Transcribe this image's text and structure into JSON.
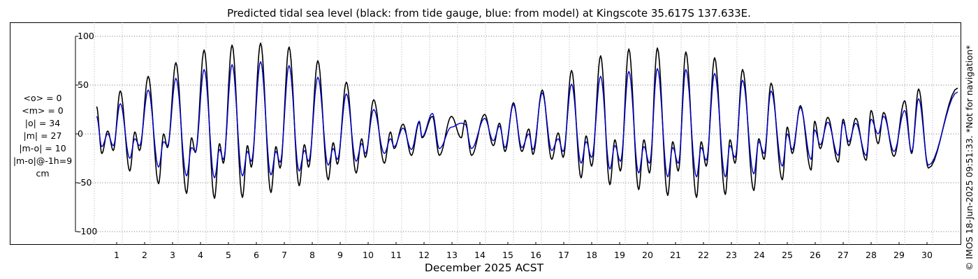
{
  "chart_data": {
    "type": "line",
    "title": "Predicted tidal sea level (black: from tide gauge, blue: from model) at Kingscote 35.617S 137.633E.",
    "xlabel": "December 2025 ACST",
    "ylabel": "cm",
    "x_range_days": [
      0,
      30.9
    ],
    "ylim": [
      -100,
      100
    ],
    "yticks": [
      100,
      50,
      0,
      -50,
      -100
    ],
    "xtick_labels": [
      "1",
      "2",
      "3",
      "4",
      "5",
      "6",
      "7",
      "8",
      "9",
      "10",
      "11",
      "12",
      "13",
      "14",
      "15",
      "16",
      "17",
      "18",
      "19",
      "20",
      "21",
      "22",
      "23",
      "24",
      "25",
      "26",
      "27",
      "28",
      "29",
      "30"
    ],
    "grid": true,
    "stats": [
      "<o> = 0",
      "<m> = 0",
      "|o| = 34",
      "|m| = 27",
      "|m-o| = 10",
      "|m-o|@-1h=9",
      "cm"
    ],
    "credit": "© IMOS 18-Jun-2025 09:51:33. *Not for navigation*",
    "colors": {
      "observed": "#000000",
      "model": "#0000cc",
      "grid": "#999999"
    },
    "series": [
      {
        "name": "tide gauge",
        "color": "#000000",
        "extremes": [
          [
            0.08,
            28
          ],
          [
            0.27,
            -20
          ],
          [
            0.48,
            3
          ],
          [
            0.68,
            -17
          ],
          [
            0.93,
            44
          ],
          [
            1.27,
            -38
          ],
          [
            1.45,
            2
          ],
          [
            1.62,
            -17
          ],
          [
            1.93,
            59
          ],
          [
            2.3,
            -51
          ],
          [
            2.48,
            0
          ],
          [
            2.62,
            -14
          ],
          [
            2.92,
            73
          ],
          [
            3.3,
            -61
          ],
          [
            3.48,
            -4
          ],
          [
            3.62,
            -19
          ],
          [
            3.93,
            86
          ],
          [
            4.3,
            -66
          ],
          [
            4.48,
            -10
          ],
          [
            4.62,
            -30
          ],
          [
            4.93,
            91
          ],
          [
            5.3,
            -65
          ],
          [
            5.48,
            -12
          ],
          [
            5.62,
            -34
          ],
          [
            5.95,
            93
          ],
          [
            6.32,
            -60
          ],
          [
            6.5,
            -13
          ],
          [
            6.65,
            -35
          ],
          [
            6.97,
            89
          ],
          [
            7.33,
            -53
          ],
          [
            7.52,
            -11
          ],
          [
            7.67,
            -34
          ],
          [
            8.0,
            75
          ],
          [
            8.37,
            -47
          ],
          [
            8.55,
            -9
          ],
          [
            8.7,
            -31
          ],
          [
            9.02,
            53
          ],
          [
            9.37,
            -40
          ],
          [
            9.57,
            -5
          ],
          [
            9.7,
            -24
          ],
          [
            10.0,
            35
          ],
          [
            10.38,
            -30
          ],
          [
            10.6,
            2
          ],
          [
            10.73,
            -15
          ],
          [
            11.05,
            10
          ],
          [
            11.35,
            -22
          ],
          [
            11.63,
            12
          ],
          [
            11.73,
            -4
          ],
          [
            12.1,
            18
          ],
          [
            12.35,
            -22
          ],
          [
            12.78,
            18
          ],
          [
            13.13,
            -4
          ],
          [
            13.27,
            14
          ],
          [
            13.5,
            -22
          ],
          [
            13.97,
            20
          ],
          [
            14.28,
            -12
          ],
          [
            14.5,
            11
          ],
          [
            14.7,
            -18
          ],
          [
            15.0,
            32
          ],
          [
            15.3,
            -18
          ],
          [
            15.55,
            5
          ],
          [
            15.7,
            -21
          ],
          [
            16.03,
            45
          ],
          [
            16.37,
            -26
          ],
          [
            16.6,
            1
          ],
          [
            16.78,
            -24
          ],
          [
            17.08,
            65
          ],
          [
            17.42,
            -45
          ],
          [
            17.6,
            -2
          ],
          [
            17.8,
            -33
          ],
          [
            18.12,
            80
          ],
          [
            18.45,
            -52
          ],
          [
            18.63,
            -6
          ],
          [
            18.83,
            -38
          ],
          [
            19.13,
            87
          ],
          [
            19.48,
            -57
          ],
          [
            19.67,
            -6
          ],
          [
            19.87,
            -40
          ],
          [
            20.15,
            88
          ],
          [
            20.52,
            -63
          ],
          [
            20.7,
            -8
          ],
          [
            20.9,
            -38
          ],
          [
            21.17,
            84
          ],
          [
            21.55,
            -65
          ],
          [
            21.72,
            -8
          ],
          [
            21.9,
            -33
          ],
          [
            22.2,
            78
          ],
          [
            22.58,
            -62
          ],
          [
            22.75,
            -6
          ],
          [
            22.93,
            -30
          ],
          [
            23.2,
            66
          ],
          [
            23.6,
            -58
          ],
          [
            23.78,
            -5
          ],
          [
            23.97,
            -26
          ],
          [
            24.22,
            52
          ],
          [
            24.62,
            -47
          ],
          [
            24.8,
            7
          ],
          [
            24.98,
            -20
          ],
          [
            25.27,
            29
          ],
          [
            25.65,
            -37
          ],
          [
            25.78,
            13
          ],
          [
            25.98,
            -15
          ],
          [
            26.25,
            17
          ],
          [
            26.62,
            -29
          ],
          [
            26.8,
            15
          ],
          [
            27.0,
            -12
          ],
          [
            27.25,
            16
          ],
          [
            27.62,
            -27
          ],
          [
            27.8,
            24
          ],
          [
            28.05,
            -10
          ],
          [
            28.25,
            22
          ],
          [
            28.62,
            -23
          ],
          [
            29.0,
            34
          ],
          [
            29.25,
            -20
          ],
          [
            29.5,
            46
          ],
          [
            29.85,
            -35
          ],
          [
            30.9,
            47
          ]
        ]
      },
      {
        "name": "model",
        "color": "#0000cc",
        "extremes": [
          [
            0.08,
            18
          ],
          [
            0.27,
            -13
          ],
          [
            0.48,
            0
          ],
          [
            0.68,
            -12
          ],
          [
            0.93,
            31
          ],
          [
            1.27,
            -25
          ],
          [
            1.45,
            -5
          ],
          [
            1.62,
            -12
          ],
          [
            1.93,
            45
          ],
          [
            2.3,
            -34
          ],
          [
            2.48,
            -8
          ],
          [
            2.62,
            -12
          ],
          [
            2.92,
            57
          ],
          [
            3.3,
            -43
          ],
          [
            3.48,
            -14
          ],
          [
            3.62,
            -18
          ],
          [
            3.93,
            66
          ],
          [
            4.3,
            -45
          ],
          [
            4.48,
            -16
          ],
          [
            4.62,
            -26
          ],
          [
            4.93,
            71
          ],
          [
            5.3,
            -43
          ],
          [
            5.48,
            -18
          ],
          [
            5.62,
            -28
          ],
          [
            5.95,
            74
          ],
          [
            6.32,
            -42
          ],
          [
            6.5,
            -18
          ],
          [
            6.65,
            -29
          ],
          [
            6.97,
            70
          ],
          [
            7.33,
            -38
          ],
          [
            7.52,
            -17
          ],
          [
            7.67,
            -28
          ],
          [
            8.0,
            58
          ],
          [
            8.37,
            -32
          ],
          [
            8.55,
            -15
          ],
          [
            8.7,
            -26
          ],
          [
            9.02,
            41
          ],
          [
            9.37,
            -28
          ],
          [
            9.57,
            -10
          ],
          [
            9.7,
            -20
          ],
          [
            10.0,
            25
          ],
          [
            10.38,
            -20
          ],
          [
            10.6,
            -5
          ],
          [
            10.73,
            -13
          ],
          [
            11.05,
            6
          ],
          [
            11.35,
            -16
          ],
          [
            11.63,
            13
          ],
          [
            11.73,
            -3
          ],
          [
            12.1,
            21
          ],
          [
            12.35,
            -15
          ],
          [
            12.78,
            7
          ],
          [
            13.13,
            11
          ],
          [
            13.27,
            10
          ],
          [
            13.5,
            -15
          ],
          [
            13.97,
            16
          ],
          [
            14.28,
            -7
          ],
          [
            14.5,
            8
          ],
          [
            14.7,
            -14
          ],
          [
            15.0,
            30
          ],
          [
            15.3,
            -14
          ],
          [
            15.55,
            0
          ],
          [
            15.7,
            -16
          ],
          [
            16.03,
            42
          ],
          [
            16.37,
            -17
          ],
          [
            16.6,
            -5
          ],
          [
            16.78,
            -18
          ],
          [
            17.08,
            51
          ],
          [
            17.42,
            -30
          ],
          [
            17.6,
            -8
          ],
          [
            17.8,
            -24
          ],
          [
            18.12,
            59
          ],
          [
            18.45,
            -36
          ],
          [
            18.63,
            -12
          ],
          [
            18.83,
            -28
          ],
          [
            19.13,
            64
          ],
          [
            19.48,
            -40
          ],
          [
            19.67,
            -13
          ],
          [
            19.87,
            -30
          ],
          [
            20.15,
            67
          ],
          [
            20.52,
            -44
          ],
          [
            20.7,
            -14
          ],
          [
            20.9,
            -30
          ],
          [
            21.17,
            66
          ],
          [
            21.55,
            -44
          ],
          [
            21.72,
            -14
          ],
          [
            21.9,
            -27
          ],
          [
            22.2,
            62
          ],
          [
            22.58,
            -44
          ],
          [
            22.75,
            -12
          ],
          [
            22.93,
            -24
          ],
          [
            23.2,
            55
          ],
          [
            23.6,
            -41
          ],
          [
            23.78,
            -8
          ],
          [
            23.97,
            -20
          ],
          [
            24.22,
            44
          ],
          [
            24.62,
            -33
          ],
          [
            24.8,
            0
          ],
          [
            24.98,
            -16
          ],
          [
            25.27,
            27
          ],
          [
            25.65,
            -26
          ],
          [
            25.78,
            4
          ],
          [
            25.98,
            -11
          ],
          [
            26.25,
            12
          ],
          [
            26.62,
            -22
          ],
          [
            26.8,
            12
          ],
          [
            27.0,
            -8
          ],
          [
            27.25,
            11
          ],
          [
            27.62,
            -22
          ],
          [
            27.8,
            15
          ],
          [
            28.05,
            0
          ],
          [
            28.25,
            18
          ],
          [
            28.62,
            -18
          ],
          [
            29.0,
            24
          ],
          [
            29.25,
            -18
          ],
          [
            29.5,
            36
          ],
          [
            29.85,
            -32
          ],
          [
            30.9,
            43
          ]
        ]
      }
    ]
  }
}
